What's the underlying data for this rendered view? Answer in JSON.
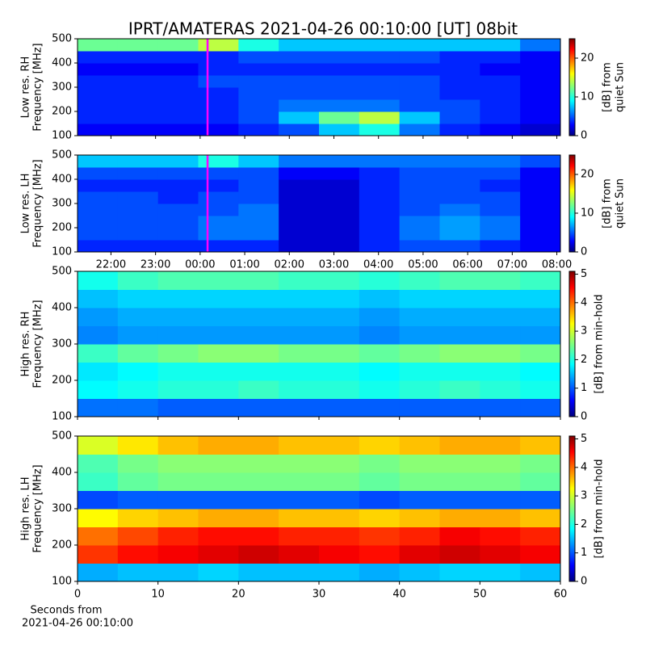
{
  "chart_data": [
    {
      "type": "heatmap",
      "title": "IPRT/AMATERAS 2021-04-26 00:10:00 [UT]   08bit",
      "ylabel": [
        "Low res. RH",
        "Frequency [MHz]"
      ],
      "colorbar_label": [
        "[dB] from",
        "quiet Sun"
      ],
      "colormap": "jet",
      "zlim": [
        0,
        25
      ],
      "zticks": [
        0,
        10,
        20
      ],
      "xlim": [
        21.25,
        32.08
      ],
      "xticks": [
        22,
        23,
        24,
        25,
        26,
        27,
        28,
        29,
        30,
        31,
        32
      ],
      "ylim": [
        100,
        500
      ],
      "yticks": [
        100,
        200,
        300,
        400,
        500
      ],
      "cursor_x": 24.1667,
      "cursor_color": "#ff00ff",
      "values": [
        [
          3,
          3,
          3,
          3,
          4,
          5,
          8,
          10,
          6,
          4,
          3,
          2
        ],
        [
          4,
          4,
          4,
          4,
          5,
          8,
          12,
          14,
          8,
          5,
          4,
          3
        ],
        [
          4,
          4,
          4,
          4,
          5,
          6,
          6,
          6,
          5,
          5,
          4,
          3
        ],
        [
          4,
          4,
          4,
          4,
          5,
          5,
          5,
          5,
          5,
          4,
          4,
          3
        ],
        [
          4,
          4,
          4,
          5,
          5,
          5,
          5,
          5,
          5,
          4,
          4,
          3
        ],
        [
          3,
          3,
          3,
          4,
          4,
          4,
          4,
          4,
          4,
          4,
          3,
          3
        ],
        [
          4,
          4,
          4,
          4,
          5,
          5,
          5,
          5,
          5,
          4,
          4,
          3
        ],
        [
          12,
          12,
          12,
          14,
          10,
          8,
          8,
          8,
          8,
          8,
          8,
          6
        ]
      ]
    },
    {
      "type": "heatmap",
      "ylabel": [
        "Low res. LH",
        "Frequency [MHz]"
      ],
      "colorbar_label": [
        "[dB] from",
        "quiet Sun"
      ],
      "colormap": "jet",
      "zlim": [
        0,
        25
      ],
      "zticks": [
        0,
        10,
        20
      ],
      "xlim": [
        21.25,
        32.08
      ],
      "xticks": [
        {
          "value": 22,
          "label": "22:00"
        },
        {
          "value": 23,
          "label": "23:00"
        },
        {
          "value": 24,
          "label": "00:00"
        },
        {
          "value": 25,
          "label": "01:00"
        },
        {
          "value": 26,
          "label": "02:00"
        },
        {
          "value": 27,
          "label": "03:00"
        },
        {
          "value": 28,
          "label": "04:00"
        },
        {
          "value": 29,
          "label": "05:00"
        },
        {
          "value": 30,
          "label": "06:00"
        },
        {
          "value": 31,
          "label": "07:00"
        },
        {
          "value": 32,
          "label": "08:00"
        }
      ],
      "ylim": [
        100,
        500
      ],
      "yticks": [
        100,
        200,
        300,
        400,
        500
      ],
      "cursor_x": 24.1667,
      "cursor_color": "#ff00ff",
      "values": [
        [
          4,
          4,
          4,
          4,
          4,
          2,
          2,
          4,
          5,
          5,
          4,
          3
        ],
        [
          5,
          5,
          5,
          6,
          6,
          2,
          2,
          4,
          6,
          7,
          6,
          3
        ],
        [
          5,
          5,
          5,
          6,
          6,
          2,
          2,
          4,
          6,
          7,
          6,
          3
        ],
        [
          5,
          5,
          5,
          5,
          6,
          2,
          2,
          4,
          5,
          6,
          5,
          3
        ],
        [
          5,
          5,
          4,
          5,
          5,
          2,
          2,
          4,
          5,
          5,
          5,
          3
        ],
        [
          4,
          4,
          4,
          4,
          5,
          2,
          2,
          4,
          5,
          5,
          4,
          3
        ],
        [
          5,
          5,
          5,
          5,
          5,
          3,
          3,
          4,
          5,
          5,
          5,
          3
        ],
        [
          8,
          8,
          8,
          10,
          8,
          6,
          6,
          6,
          6,
          6,
          6,
          5
        ]
      ]
    },
    {
      "type": "heatmap",
      "ylabel": [
        "High res. RH",
        "Frequency [MHz]"
      ],
      "colorbar_label": [
        "[dB] from min-hold"
      ],
      "colormap": "jet",
      "zlim": [
        0,
        5.1
      ],
      "zticks": [
        0,
        1,
        2,
        3,
        4,
        5
      ],
      "xlim": [
        0,
        60
      ],
      "xticks": [
        0,
        10,
        20,
        30,
        40,
        50,
        60
      ],
      "ylim": [
        100,
        500
      ],
      "yticks": [
        100,
        200,
        300,
        400,
        500
      ],
      "values": [
        [
          1.2,
          1.2,
          1.1,
          1.1,
          1.1,
          1.1,
          1.1,
          1.1,
          1.1,
          1.1,
          1.1,
          1.1
        ],
        [
          1.9,
          2,
          2.1,
          2.1,
          2.2,
          2.1,
          2.1,
          2,
          2.1,
          2.2,
          2.1,
          2
        ],
        [
          1.8,
          1.9,
          2,
          2,
          2,
          2,
          2,
          1.9,
          2,
          2,
          2,
          1.9
        ],
        [
          2.2,
          2.4,
          2.5,
          2.6,
          2.6,
          2.5,
          2.5,
          2.4,
          2.5,
          2.6,
          2.6,
          2.5
        ],
        [
          1.3,
          1.4,
          1.4,
          1.4,
          1.4,
          1.4,
          1.4,
          1.3,
          1.4,
          1.4,
          1.4,
          1.4
        ],
        [
          1.4,
          1.5,
          1.5,
          1.5,
          1.5,
          1.5,
          1.5,
          1.4,
          1.5,
          1.5,
          1.5,
          1.5
        ],
        [
          1.6,
          1.7,
          1.7,
          1.7,
          1.7,
          1.7,
          1.7,
          1.6,
          1.7,
          1.7,
          1.7,
          1.7
        ],
        [
          2,
          2.2,
          2.3,
          2.3,
          2.3,
          2.2,
          2.2,
          2.1,
          2.2,
          2.3,
          2.3,
          2.2
        ]
      ]
    },
    {
      "type": "heatmap",
      "ylabel": [
        "High res. LH",
        "Frequency [MHz]"
      ],
      "colorbar_label": [
        "[dB] from min-hold"
      ],
      "colormap": "jet",
      "zlim": [
        0,
        5.1
      ],
      "zticks": [
        0,
        1,
        2,
        3,
        4,
        5
      ],
      "xlim": [
        0,
        60
      ],
      "xticks": [
        0,
        10,
        20,
        30,
        40,
        50,
        60
      ],
      "xlabel": [
        "Seconds from",
        "2021-04-26 00:10:00"
      ],
      "ylim": [
        100,
        500
      ],
      "yticks": [
        100,
        200,
        300,
        400,
        500
      ],
      "values": [
        [
          1.5,
          1.6,
          1.6,
          1.7,
          1.6,
          1.6,
          1.6,
          1.5,
          1.6,
          1.7,
          1.7,
          1.6
        ],
        [
          4.2,
          4.4,
          4.5,
          4.6,
          4.7,
          4.6,
          4.5,
          4.4,
          4.6,
          4.7,
          4.6,
          4.5
        ],
        [
          3.9,
          4.1,
          4.3,
          4.4,
          4.4,
          4.3,
          4.3,
          4.2,
          4.3,
          4.5,
          4.4,
          4.3
        ],
        [
          3.2,
          3.4,
          3.5,
          3.6,
          3.6,
          3.5,
          3.5,
          3.4,
          3.5,
          3.6,
          3.6,
          3.5
        ],
        [
          1,
          1.1,
          1.1,
          1.1,
          1.1,
          1.1,
          1.1,
          1,
          1.1,
          1.1,
          1.1,
          1.1
        ],
        [
          2.2,
          2.4,
          2.5,
          2.5,
          2.5,
          2.5,
          2.5,
          2.4,
          2.5,
          2.5,
          2.5,
          2.4
        ],
        [
          2.3,
          2.5,
          2.6,
          2.6,
          2.6,
          2.6,
          2.6,
          2.5,
          2.6,
          2.6,
          2.6,
          2.5
        ],
        [
          3,
          3.3,
          3.5,
          3.6,
          3.6,
          3.5,
          3.5,
          3.4,
          3.5,
          3.6,
          3.6,
          3.5
        ]
      ]
    }
  ]
}
